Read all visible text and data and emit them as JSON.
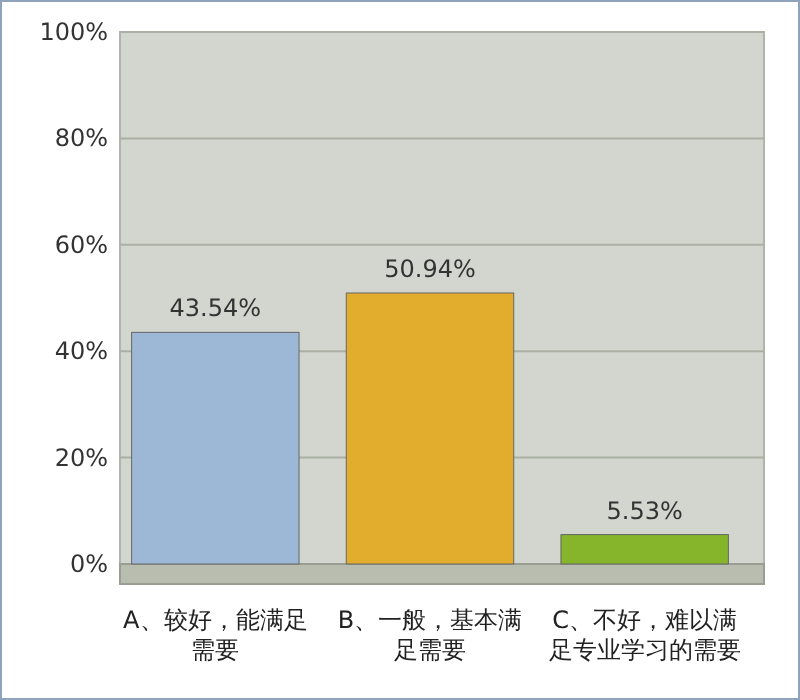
{
  "chart_data": {
    "type": "bar",
    "categories": [
      "A、较好，能满足需要",
      "B、一般，基本满足需要",
      "C、不好，难以满足专业学习的需要"
    ],
    "values": [
      43.54,
      50.94,
      5.53
    ],
    "colors": [
      "#9db8d6",
      "#e2ad2c",
      "#86b42a"
    ],
    "value_labels": [
      "43.54%",
      "50.94%",
      "5.53%"
    ],
    "ylim": [
      0,
      100
    ],
    "yticks": [
      {
        "value": 0,
        "label": "0%"
      },
      {
        "value": 20,
        "label": "20%"
      },
      {
        "value": 40,
        "label": "40%"
      },
      {
        "value": 60,
        "label": "60%"
      },
      {
        "value": 80,
        "label": "80%"
      },
      {
        "value": 100,
        "label": "100%"
      }
    ],
    "grid": "y"
  }
}
